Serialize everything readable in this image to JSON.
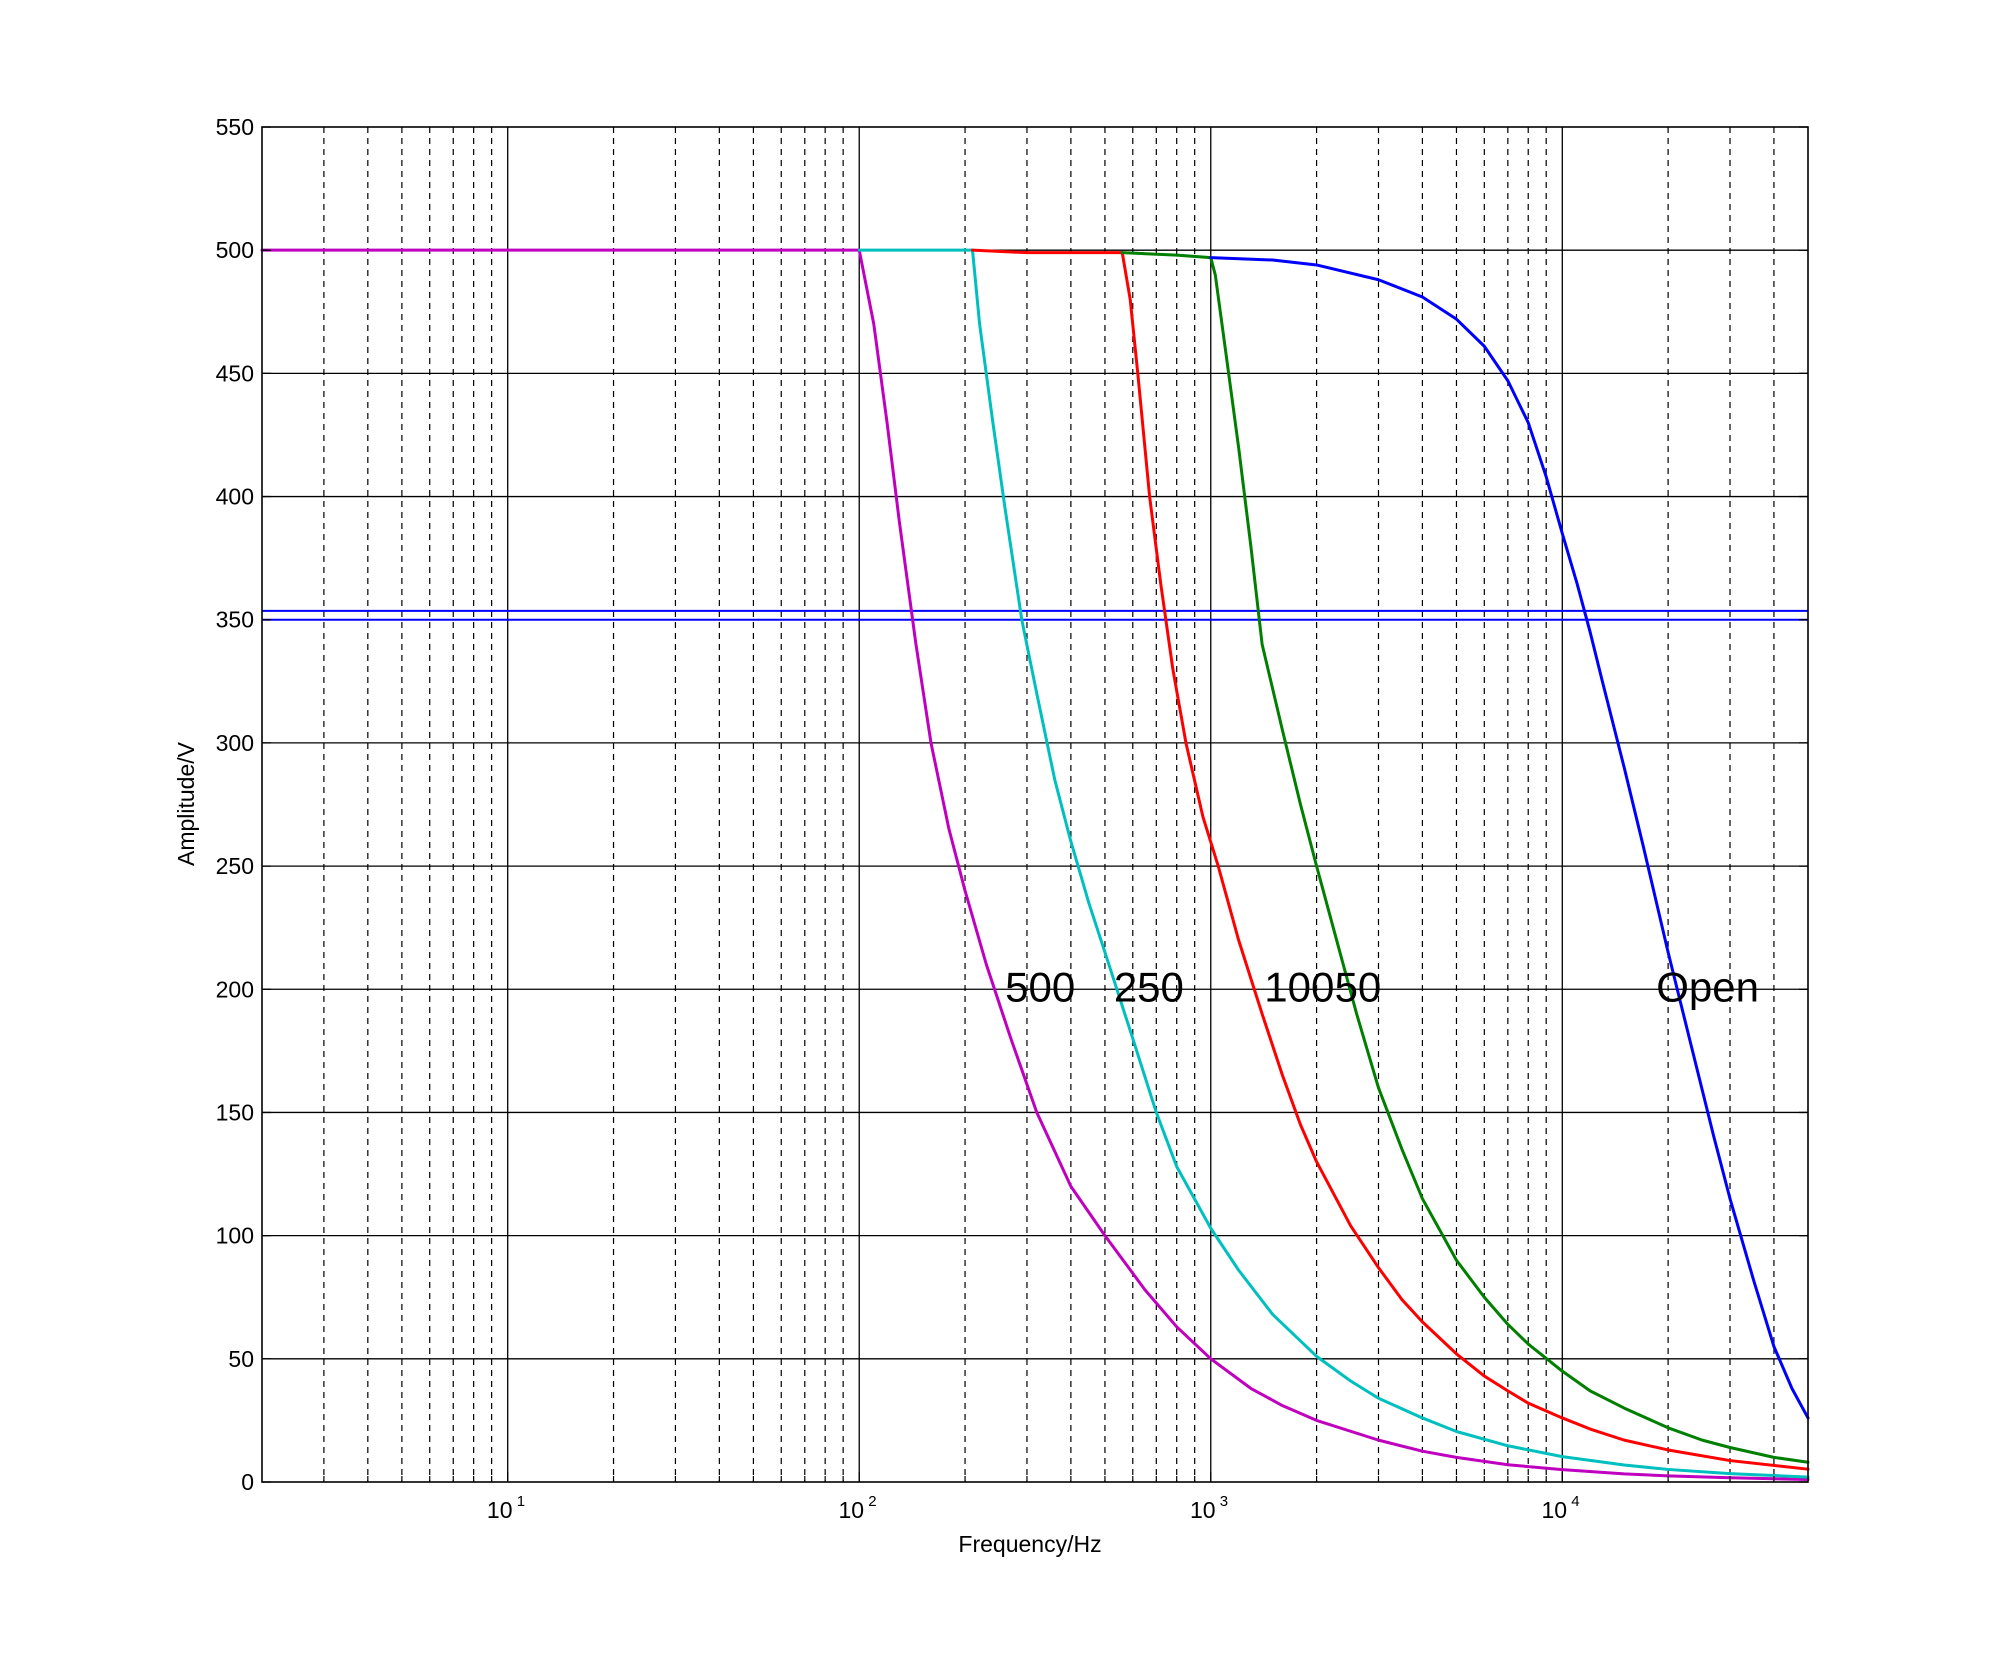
{
  "chart_data": {
    "type": "line",
    "title": "",
    "xlabel": "Frequency/Hz",
    "ylabel": "Amplitude/V",
    "x_scale": "log",
    "xlim": [
      2,
      50000
    ],
    "ylim": [
      0,
      550
    ],
    "grid": true,
    "x_tick_labels": [
      {
        "base": "10",
        "exp": "1",
        "value": 10
      },
      {
        "base": "10",
        "exp": "2",
        "value": 100
      },
      {
        "base": "10",
        "exp": "3",
        "value": 1000
      },
      {
        "base": "10",
        "exp": "4",
        "value": 10000
      }
    ],
    "y_ticks": [
      0,
      50,
      100,
      150,
      200,
      250,
      300,
      350,
      400,
      450,
      500,
      550
    ],
    "reference_lines": [
      {
        "y": 350,
        "color": "#0000ff"
      },
      {
        "y": 353.6,
        "color": "#0000ff"
      }
    ],
    "series": [
      {
        "color": "#bf00bf",
        "label": "500",
        "points": [
          [
            2,
            500
          ],
          [
            100,
            500
          ],
          [
            110,
            470
          ],
          [
            120,
            430
          ],
          [
            130,
            390
          ],
          [
            145,
            340
          ],
          [
            160,
            300
          ],
          [
            180,
            265
          ],
          [
            200,
            240
          ],
          [
            230,
            210
          ],
          [
            270,
            180
          ],
          [
            320,
            150
          ],
          [
            400,
            120
          ],
          [
            500,
            100
          ],
          [
            650,
            78
          ],
          [
            800,
            63
          ],
          [
            1000,
            50
          ],
          [
            1300,
            38
          ],
          [
            1600,
            31
          ],
          [
            2000,
            25
          ],
          [
            3000,
            17
          ],
          [
            4000,
            12.5
          ],
          [
            5000,
            10
          ],
          [
            7000,
            7
          ],
          [
            10000,
            5
          ],
          [
            15000,
            3.3
          ],
          [
            20000,
            2.5
          ],
          [
            30000,
            1.7
          ],
          [
            50000,
            1
          ]
        ]
      },
      {
        "color": "#00bfbf",
        "label": "250",
        "points": [
          [
            100,
            500
          ],
          [
            210,
            500
          ],
          [
            220,
            470
          ],
          [
            240,
            430
          ],
          [
            260,
            395
          ],
          [
            290,
            350
          ],
          [
            320,
            320
          ],
          [
            360,
            285
          ],
          [
            400,
            260
          ],
          [
            450,
            235
          ],
          [
            500,
            215
          ],
          [
            600,
            180
          ],
          [
            700,
            150
          ],
          [
            800,
            128
          ],
          [
            1000,
            103
          ],
          [
            1200,
            86
          ],
          [
            1500,
            68
          ],
          [
            2000,
            51
          ],
          [
            2500,
            41
          ],
          [
            3000,
            34
          ],
          [
            4000,
            26
          ],
          [
            5000,
            20.5
          ],
          [
            7000,
            14.7
          ],
          [
            10000,
            10.3
          ],
          [
            15000,
            6.9
          ],
          [
            20000,
            5.1
          ],
          [
            30000,
            3.4
          ],
          [
            50000,
            2
          ]
        ]
      },
      {
        "color": "#ff0000",
        "label": "100",
        "points": [
          [
            210,
            500
          ],
          [
            300,
            499
          ],
          [
            560,
            499
          ],
          [
            590,
            480
          ],
          [
            620,
            450
          ],
          [
            670,
            400
          ],
          [
            720,
            365
          ],
          [
            780,
            330
          ],
          [
            850,
            300
          ],
          [
            950,
            270
          ],
          [
            1050,
            250
          ],
          [
            1200,
            220
          ],
          [
            1400,
            190
          ],
          [
            1600,
            165
          ],
          [
            1800,
            145
          ],
          [
            2000,
            130
          ],
          [
            2500,
            104
          ],
          [
            3000,
            87
          ],
          [
            3500,
            74
          ],
          [
            4000,
            65
          ],
          [
            5000,
            52
          ],
          [
            6000,
            43
          ],
          [
            7000,
            37
          ],
          [
            8000,
            32
          ],
          [
            10000,
            26
          ],
          [
            12000,
            21.5
          ],
          [
            15000,
            17
          ],
          [
            20000,
            13
          ],
          [
            30000,
            8.7
          ],
          [
            50000,
            5.2
          ]
        ]
      },
      {
        "color": "#007f00",
        "label": "50",
        "points": [
          [
            560,
            499
          ],
          [
            800,
            498
          ],
          [
            1000,
            497
          ],
          [
            1030,
            490
          ],
          [
            1100,
            460
          ],
          [
            1200,
            420
          ],
          [
            1300,
            380
          ],
          [
            1400,
            340
          ],
          [
            1600,
            305
          ],
          [
            1800,
            275
          ],
          [
            2000,
            250
          ],
          [
            2300,
            218
          ],
          [
            2600,
            190
          ],
          [
            3000,
            160
          ],
          [
            3500,
            135
          ],
          [
            4000,
            115
          ],
          [
            5000,
            90
          ],
          [
            6000,
            75
          ],
          [
            7000,
            64
          ],
          [
            8000,
            56
          ],
          [
            10000,
            45
          ],
          [
            12000,
            37
          ],
          [
            15000,
            30
          ],
          [
            20000,
            22
          ],
          [
            25000,
            17
          ],
          [
            30000,
            14
          ],
          [
            40000,
            10
          ],
          [
            50000,
            8
          ]
        ]
      },
      {
        "color": "#0000ff",
        "label": "Open",
        "points": [
          [
            1000,
            497
          ],
          [
            1500,
            496
          ],
          [
            2000,
            494
          ],
          [
            3000,
            488
          ],
          [
            4000,
            481
          ],
          [
            5000,
            472
          ],
          [
            6000,
            461
          ],
          [
            7000,
            447
          ],
          [
            8000,
            430
          ],
          [
            9000,
            408
          ],
          [
            10000,
            385
          ],
          [
            11000,
            365
          ],
          [
            12000,
            345
          ],
          [
            13000,
            325
          ],
          [
            15000,
            290
          ],
          [
            17000,
            258
          ],
          [
            20000,
            215
          ],
          [
            23000,
            180
          ],
          [
            27000,
            140
          ],
          [
            30000,
            115
          ],
          [
            35000,
            82
          ],
          [
            40000,
            55
          ],
          [
            45000,
            38
          ],
          [
            50000,
            26
          ]
        ]
      }
    ],
    "annotations": [
      {
        "text": "500",
        "x": 260,
        "y": 200
      },
      {
        "text": "250",
        "x": 530,
        "y": 200
      },
      {
        "text": "100",
        "x": 1420,
        "y": 200
      },
      {
        "text": "50",
        "x": 2250,
        "y": 200
      },
      {
        "text": "Open",
        "x": 18500,
        "y": 200
      }
    ]
  }
}
